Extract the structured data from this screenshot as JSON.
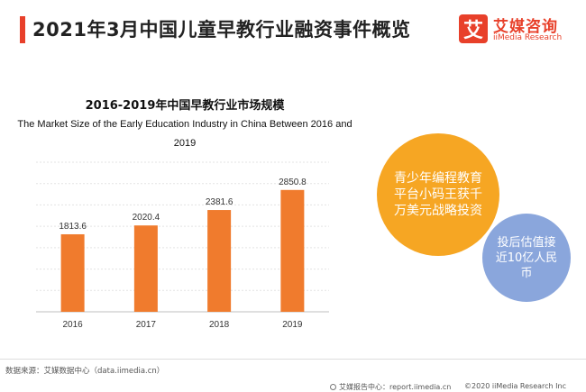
{
  "header": {
    "title": "2021年3月中国儿童早教行业融资事件概览"
  },
  "logo": {
    "mark": "艾",
    "name_cn": "艾媒咨询",
    "name_en": "iiMedia Research"
  },
  "chart_data": {
    "type": "bar",
    "title": "2016-2019年中国早教行业市场规模",
    "subtitle": "The Market Size of the Early Education Industry in China Between 2016 and 2019",
    "categories": [
      "2016",
      "2017",
      "2018",
      "2019"
    ],
    "values": [
      1813.6,
      2020.4,
      2381.6,
      2850.8
    ],
    "value_labels": [
      "1813.6",
      "2020.4",
      "2381.6",
      "2850.8"
    ],
    "xlabel": "",
    "ylabel": "",
    "ylim": [
      0,
      3500
    ],
    "grid": true,
    "color": "#f07b2d"
  },
  "bubbles": {
    "main": "青少年编程教育平台小码王获千万美元战略投资",
    "side": "投后估值接近10亿人民币"
  },
  "footer": {
    "source": "数据来源：艾媒数据中心（data.iimedia.cn）",
    "report": "艾媒报告中心：report.iimedia.cn",
    "copyright": "©2020  iiMedia Research  Inc"
  }
}
